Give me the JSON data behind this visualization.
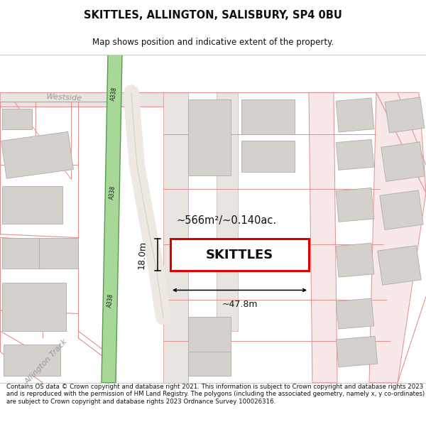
{
  "title": "SKITTLES, ALLINGTON, SALISBURY, SP4 0BU",
  "subtitle": "Map shows position and indicative extent of the property.",
  "footer": "Contains OS data © Crown copyright and database right 2021. This information is subject to Crown copyright and database rights 2023 and is reproduced with the permission of HM Land Registry. The polygons (including the associated geometry, namely x, y co-ordinates) are subject to Crown copyright and database rights 2023 Ordnance Survey 100026316.",
  "bg_color": "#ffffff",
  "map_bg": "#f7f4f0",
  "green_fill": "#a8d898",
  "green_edge": "#5a9a50",
  "building_fill": "#d4d0cc",
  "building_edge": "#b0aca8",
  "plot_edge": "#dd0000",
  "plot_fill": "#ffffff",
  "pink_line": "#e09090",
  "pink_fill": "#f8e8e8",
  "gray_road_fill": "#e8e4e0",
  "area_text": "~566m²/~0.140ac.",
  "plot_label": "SKITTLES",
  "dim_width": "~47.8m",
  "dim_height": "18.0m",
  "a338_label": "A338",
  "westside_label": "Westside",
  "allington_label": "Allington Track",
  "title_fs": 10.5,
  "subtitle_fs": 8.5,
  "footer_fs": 6.2
}
